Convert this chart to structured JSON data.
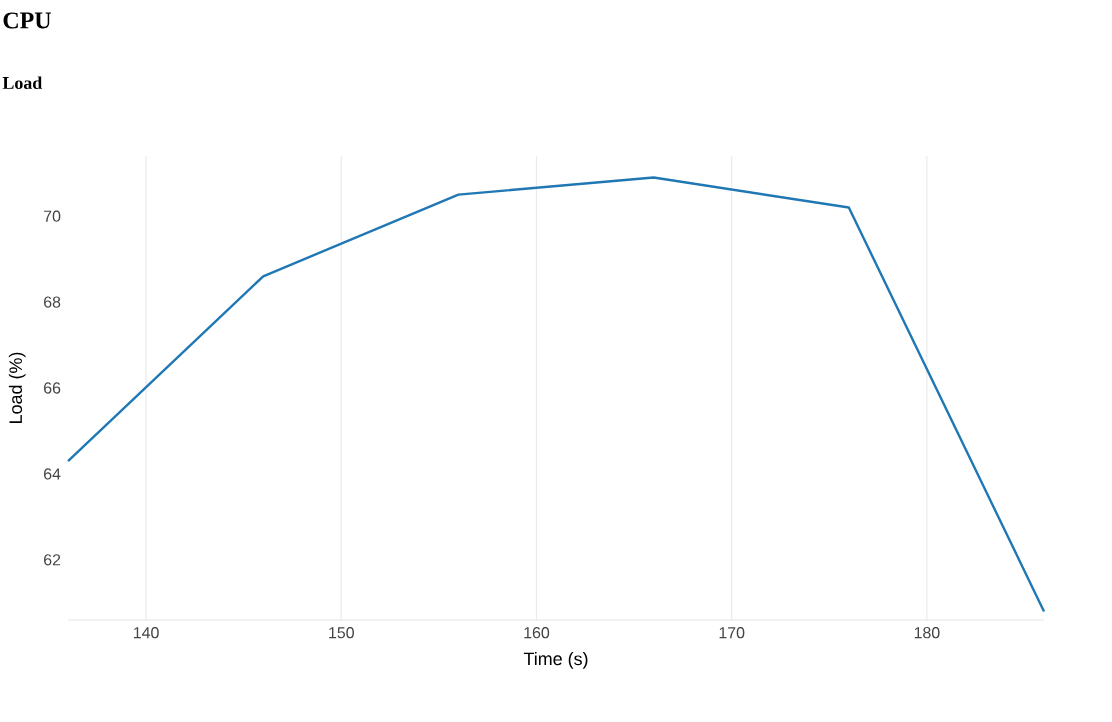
{
  "chart_data": {
    "type": "line",
    "title": "CPU",
    "subtitle": "Load",
    "xlabel": "Time (s)",
    "ylabel": "Load (%)",
    "x": [
      136,
      146,
      156,
      166,
      176,
      186
    ],
    "series": [
      {
        "color": "#1f77b4",
        "values": [
          64.3,
          68.6,
          70.5,
          70.9,
          70.2,
          60.8
        ]
      }
    ],
    "xlim": [
      136,
      186
    ],
    "ylim": [
      60.6,
      71.4
    ],
    "xticks": [
      140,
      150,
      160,
      170,
      180
    ],
    "yticks": [
      62,
      64,
      66,
      68,
      70
    ],
    "grid": "x",
    "legend": false,
    "marker": "none",
    "line_style": "solid"
  }
}
